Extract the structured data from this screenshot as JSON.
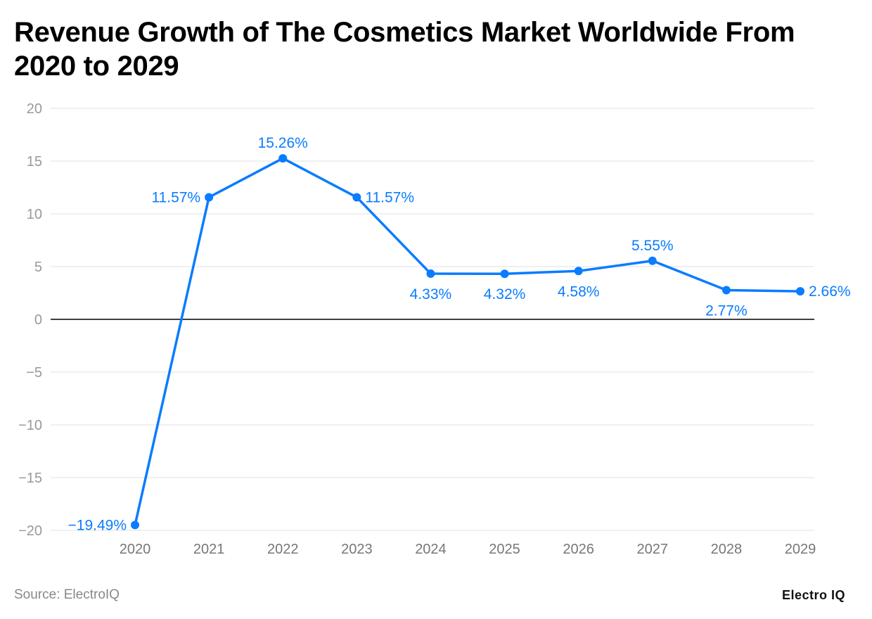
{
  "chart_data": {
    "type": "line",
    "title": "Revenue Growth of The Cosmetics Market Worldwide From 2020 to 2029",
    "xlabel": "",
    "ylabel": "",
    "categories": [
      "2020",
      "2021",
      "2022",
      "2023",
      "2024",
      "2025",
      "2026",
      "2027",
      "2028",
      "2029"
    ],
    "values": [
      -19.49,
      11.57,
      15.26,
      11.57,
      4.33,
      4.32,
      4.58,
      5.55,
      2.77,
      2.66
    ],
    "data_labels": [
      "−19.49%",
      "11.57%",
      "15.26%",
      "11.57%",
      "4.33%",
      "4.32%",
      "4.58%",
      "5.55%",
      "2.77%",
      "2.66%"
    ],
    "ylim": [
      -20,
      20
    ],
    "yticks": [
      20,
      15,
      10,
      5,
      0,
      -5,
      -10,
      -15,
      -20
    ],
    "ytick_labels": [
      "20",
      "15",
      "10",
      "5",
      "0",
      "−5",
      "−10",
      "−15",
      "−20"
    ],
    "grid": true,
    "line_color": "#0a7cff"
  },
  "footer": {
    "source": "Source: ElectroIQ",
    "logo": "Electro IQ"
  }
}
